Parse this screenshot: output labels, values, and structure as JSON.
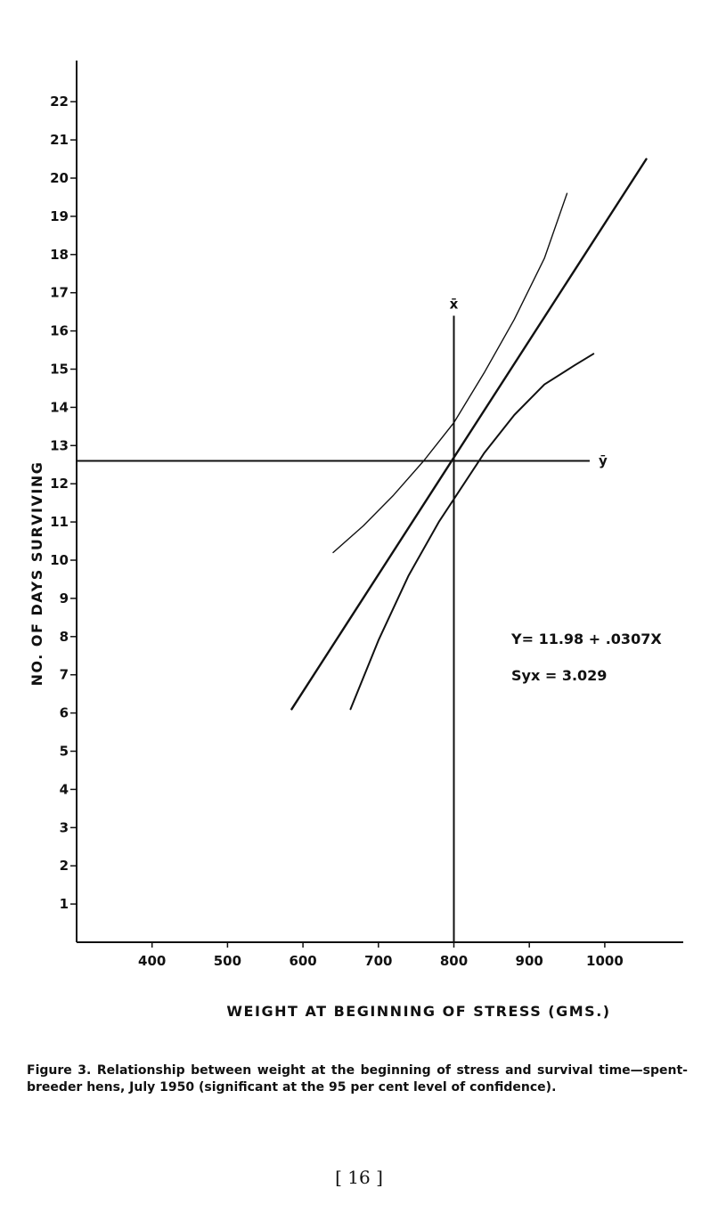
{
  "chart_data": {
    "type": "line",
    "xlabel": "WEIGHT AT BEGINNING OF STRESS (GMS.)",
    "ylabel": "NO. OF DAYS SURVIVING",
    "xlim": [
      300,
      1100
    ],
    "ylim": [
      0,
      23.5
    ],
    "x_ticks": [
      400,
      500,
      600,
      700,
      800,
      900,
      1000
    ],
    "y_ticks": [
      1,
      2,
      3,
      4,
      5,
      6,
      7,
      8,
      9,
      10,
      11,
      12,
      13,
      14,
      15,
      16,
      17,
      18,
      19,
      20,
      21,
      22
    ],
    "grid": false,
    "series": [
      {
        "role": "regression",
        "x": [
          585,
          1055
        ],
        "y": [
          6.1,
          20.5
        ]
      },
      {
        "role": "upper-confidence-band",
        "x": [
          640,
          680,
          720,
          760,
          800,
          840,
          880,
          920,
          950
        ],
        "y": [
          10.2,
          10.9,
          11.7,
          12.6,
          13.6,
          14.9,
          16.3,
          17.9,
          19.6
        ]
      },
      {
        "role": "lower-confidence-band",
        "x": [
          663,
          700,
          740,
          780,
          800,
          840,
          880,
          920,
          960,
          985
        ],
        "y": [
          6.1,
          7.9,
          9.6,
          11.0,
          11.6,
          12.8,
          13.8,
          14.6,
          15.1,
          15.4
        ]
      }
    ],
    "reference_lines": {
      "x_mean": {
        "label": "x̄",
        "x": 800,
        "y_range": [
          0,
          16.4
        ]
      },
      "y_mean": {
        "label": "ȳ",
        "y": 12.6,
        "x_range": [
          300,
          980
        ]
      }
    },
    "annotations": [
      "Y= 11.98 + .0307X",
      "Syx = 3.029"
    ]
  },
  "caption": "Figure 3. Relationship between weight at the beginning of stress and survival time—spent-breeder hens, July 1950 (significant at the 95 per cent level of confidence).",
  "page_number": "[ 16 ]"
}
